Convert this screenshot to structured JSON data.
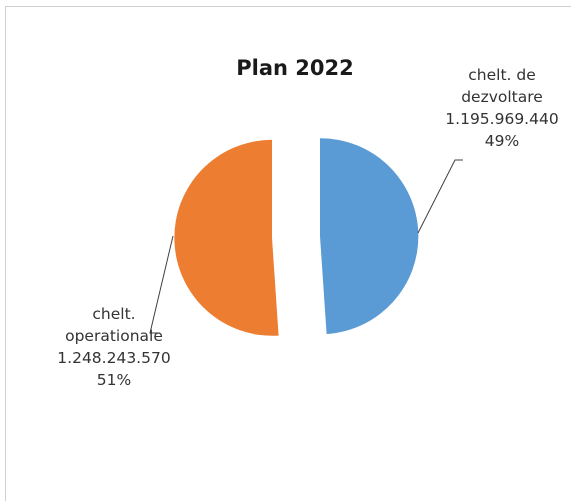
{
  "chart_data": {
    "type": "pie",
    "title": "Plan 2022",
    "slices": [
      {
        "label_line1": "chelt. de",
        "label_line2": "dezvoltare",
        "value": 1195969440,
        "value_text": "1.195.969.440",
        "percent_text": "49%",
        "color": "#5b9bd5"
      },
      {
        "label_line1": "chelt.",
        "label_line2": "operationale",
        "value": 1248243570,
        "value_text": "1.248.243.570",
        "percent_text": "51%",
        "color": "#ed7d31"
      }
    ],
    "exploded": true,
    "start_angle": "12 o'clock, clockwise",
    "legend": "none"
  }
}
